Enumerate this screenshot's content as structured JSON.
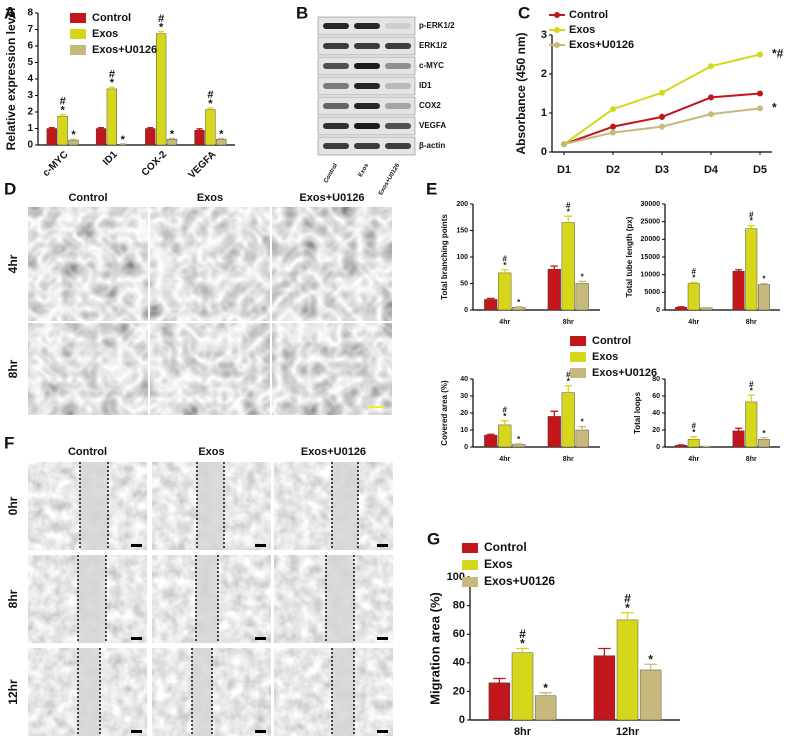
{
  "panel_labels": [
    "A",
    "B",
    "C",
    "D",
    "E",
    "F",
    "G"
  ],
  "blot": {
    "proteins": [
      "p-ERK1/2",
      "ERK1/2",
      "c-MYC",
      "ID1",
      "COX2",
      "VEGFA",
      "β-actin"
    ],
    "lanes": [
      "Control",
      "Exos",
      "Exos+U0126"
    ]
  },
  "tube_formation": {
    "columns": [
      "Control",
      "Exos",
      "Exos+U0126"
    ],
    "rows": [
      "4hr",
      "8hr"
    ]
  },
  "migration": {
    "columns": [
      "Control",
      "Exos",
      "Exos+U0126"
    ],
    "rows": [
      "0hr",
      "8hr",
      "12hr"
    ]
  },
  "chart_data": [
    {
      "type": "bar",
      "y_label": "Relative expression level",
      "categories": [
        "c-MYC",
        "ID1",
        "COX-2",
        "VEGFA"
      ],
      "ylim": [
        0,
        8
      ],
      "yticks": [
        0,
        1,
        2,
        3,
        4,
        5,
        6,
        7,
        8
      ],
      "legend": true,
      "series": [
        {
          "name": "Control",
          "color": "#c0161c",
          "values": [
            1.0,
            1.0,
            1.0,
            0.9
          ],
          "errors": [
            0.05,
            0.05,
            0.05,
            0.08
          ]
        },
        {
          "name": "Exos",
          "color": "#d6d61c",
          "values": [
            1.75,
            3.4,
            6.75,
            2.15
          ],
          "errors": [
            0.1,
            0.1,
            0.12,
            0.1
          ],
          "significance": [
            [
              "#",
              "*"
            ],
            [
              "#",
              "*"
            ],
            [
              "#",
              "*"
            ],
            [
              "#",
              "*"
            ]
          ]
        },
        {
          "name": "Exos+U0126",
          "color": "#c7b97c",
          "values": [
            0.3,
            0.05,
            0.35,
            0.35
          ],
          "errors": [
            0.05,
            0.02,
            0.05,
            0.05
          ],
          "significance": [
            [
              "*"
            ],
            [
              "*"
            ],
            [
              "*"
            ],
            [
              "*"
            ]
          ]
        }
      ]
    },
    {
      "type": "line",
      "y_label": "Absorbance (450 nm)",
      "categories": [
        "D1",
        "D2",
        "D3",
        "D4",
        "D5"
      ],
      "ylim": [
        0,
        3
      ],
      "yticks": [
        0,
        1,
        2,
        3
      ],
      "legend": true,
      "series": [
        {
          "name": "Control",
          "color": "#c0161c",
          "values": [
            0.2,
            0.65,
            0.9,
            1.4,
            1.5
          ],
          "errors": [
            0.02,
            0.04,
            0.08,
            0.03,
            0.06
          ]
        },
        {
          "name": "Exos",
          "color": "#d6d61c",
          "values": [
            0.2,
            1.1,
            1.52,
            2.2,
            2.5
          ],
          "errors": [
            0.02,
            0.06,
            0.06,
            0.03,
            0.08
          ],
          "end_label": "*#"
        },
        {
          "name": "Exos+U0126",
          "color": "#c7b97c",
          "values": [
            0.2,
            0.5,
            0.65,
            0.97,
            1.12
          ],
          "errors": [
            0.02,
            0.03,
            0.08,
            0.06,
            0.03
          ],
          "end_label": "*"
        }
      ]
    },
    {
      "type": "bar",
      "y_label": "Total branching points",
      "categories": [
        "4hr",
        "8hr"
      ],
      "ylim": [
        0,
        200
      ],
      "yticks": [
        0,
        50,
        100,
        150,
        200
      ],
      "legend": true,
      "series": [
        {
          "name": "Control",
          "color": "#c0161c",
          "values": [
            20,
            77
          ],
          "errors": [
            2,
            6
          ]
        },
        {
          "name": "Exos",
          "color": "#d6d61c",
          "values": [
            70,
            165
          ],
          "errors": [
            6,
            12
          ],
          "significance": [
            [
              "#",
              "*"
            ],
            [
              "#",
              "*"
            ]
          ]
        },
        {
          "name": "Exos+U0126",
          "color": "#c7b97c",
          "values": [
            5,
            50
          ],
          "errors": [
            1,
            4
          ],
          "significance": [
            [
              "*"
            ],
            [
              "*"
            ]
          ]
        }
      ]
    },
    {
      "type": "bar",
      "y_label": "Total tube length (px)",
      "categories": [
        "4hr",
        "8hr"
      ],
      "ylim": [
        0,
        30000
      ],
      "yticks": [
        0,
        5000,
        10000,
        15000,
        20000,
        25000,
        30000
      ],
      "series": [
        {
          "color": "#c0161c",
          "values": [
            800,
            11000
          ],
          "errors": [
            100,
            400
          ]
        },
        {
          "color": "#d6d61c",
          "values": [
            7500,
            23000
          ],
          "errors": [
            300,
            900
          ],
          "significance": [
            [
              "#",
              "*"
            ],
            [
              "#",
              "*"
            ]
          ]
        },
        {
          "color": "#c7b97c",
          "values": [
            600,
            7200
          ],
          "errors": [
            100,
            300
          ],
          "significance": [
            [],
            [
              "*"
            ]
          ]
        }
      ]
    },
    {
      "type": "bar",
      "y_label": "Covered area (%)",
      "categories": [
        "4hr",
        "8hr"
      ],
      "ylim": [
        0,
        40
      ],
      "yticks": [
        0,
        10,
        20,
        30,
        40
      ],
      "series": [
        {
          "color": "#c0161c",
          "values": [
            7,
            18
          ],
          "errors": [
            0.5,
            3
          ]
        },
        {
          "color": "#d6d61c",
          "values": [
            13,
            32
          ],
          "errors": [
            2.5,
            4
          ],
          "significance": [
            [
              "#",
              "*"
            ],
            [
              "#",
              "*"
            ]
          ]
        },
        {
          "color": "#c7b97c",
          "values": [
            1.5,
            10
          ],
          "errors": [
            0.3,
            2
          ],
          "significance": [
            [
              "*"
            ],
            [
              "*"
            ]
          ]
        }
      ]
    },
    {
      "type": "bar",
      "y_label": "Total loops",
      "categories": [
        "4hr",
        "8hr"
      ],
      "ylim": [
        0,
        80
      ],
      "yticks": [
        0,
        20,
        40,
        60,
        80
      ],
      "series": [
        {
          "color": "#c0161c",
          "values": [
            2,
            19
          ],
          "errors": [
            0.5,
            3
          ]
        },
        {
          "color": "#d6d61c",
          "values": [
            9,
            53
          ],
          "errors": [
            3,
            8
          ],
          "significance": [
            [
              "#",
              "*"
            ],
            [
              "#",
              "*"
            ]
          ]
        },
        {
          "color": "#c7b97c",
          "values": [
            0.5,
            9
          ],
          "errors": [
            0.2,
            2
          ],
          "significance": [
            [],
            [
              "*"
            ]
          ]
        }
      ]
    },
    {
      "type": "bar",
      "y_label": "Migration area (%)",
      "categories": [
        "8hr",
        "12hr"
      ],
      "ylim": [
        0,
        100
      ],
      "yticks": [
        0,
        20,
        40,
        60,
        80,
        100
      ],
      "legend": true,
      "series": [
        {
          "name": "Control",
          "color": "#c0161c",
          "values": [
            26,
            45
          ],
          "errors": [
            3,
            5
          ]
        },
        {
          "name": "Exos",
          "color": "#d6d61c",
          "values": [
            47,
            70
          ],
          "errors": [
            3,
            5
          ],
          "significance": [
            [
              "#",
              "*"
            ],
            [
              "#",
              "*"
            ]
          ]
        },
        {
          "name": "Exos+U0126",
          "color": "#c7b97c",
          "values": [
            17,
            35
          ],
          "errors": [
            2,
            4
          ],
          "significance": [
            [
              "*"
            ],
            [
              "*"
            ]
          ]
        }
      ]
    }
  ]
}
